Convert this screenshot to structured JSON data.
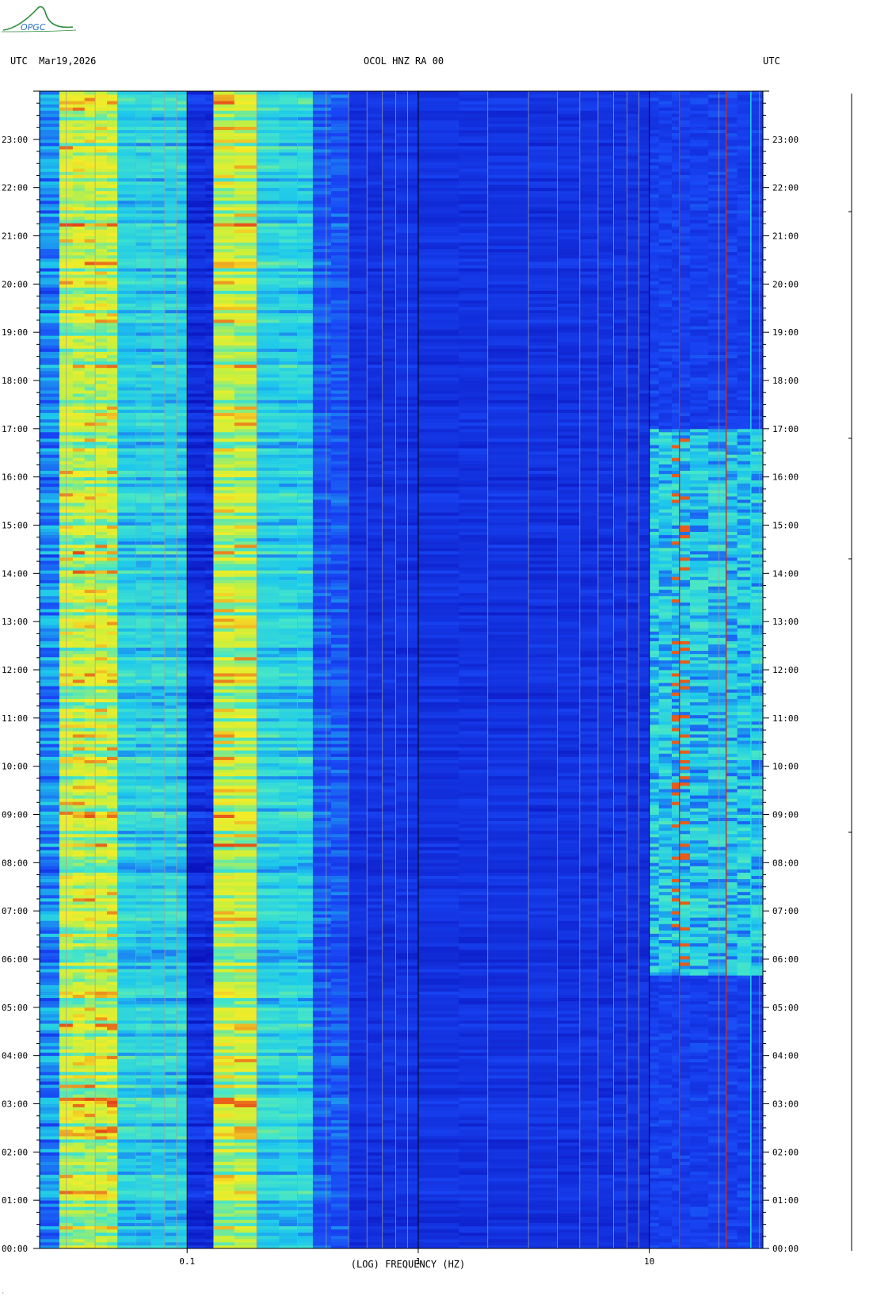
{
  "header": {
    "left": "UTC  Mar19,2026",
    "center": "OCOL HNZ RA 00",
    "right": "UTC"
  },
  "logo": {
    "text": "OPGC",
    "color": "#2a8c3a"
  },
  "colors": {
    "low": "#0a2be6",
    "mid": "#1fe0e0",
    "high": "#f2f226",
    "peak": "#e0201a",
    "freq_line_gray": "#a0a0a0",
    "freq_line_decade": "#000000",
    "freq_line_red": "#c8301a"
  },
  "chart_data": {
    "type": "heatmap",
    "title": "OCOL HNZ RA 00",
    "xlabel": "(LOG) FREQUENCY (HZ)",
    "ylabel": "UTC",
    "x_scale": "log",
    "xlim_hz": [
      0.023,
      31
    ],
    "x_ticks": [
      {
        "value": 0.1,
        "label": "0.1"
      },
      {
        "value": 1,
        "label": "1"
      },
      {
        "value": 10,
        "label": "10"
      }
    ],
    "time_range": [
      "00:00",
      "24:00"
    ],
    "y_ticks": [
      "00:00",
      "01:00",
      "02:00",
      "03:00",
      "04:00",
      "05:00",
      "06:00",
      "07:00",
      "08:00",
      "09:00",
      "10:00",
      "11:00",
      "12:00",
      "13:00",
      "14:00",
      "15:00",
      "16:00",
      "17:00",
      "18:00",
      "19:00",
      "20:00",
      "21:00",
      "22:00",
      "23:00"
    ],
    "spectral_bands": [
      {
        "from_hz": 0.028,
        "to_hz": 0.05,
        "level": "high"
      },
      {
        "from_hz": 0.05,
        "to_hz": 0.1,
        "level": "mid"
      },
      {
        "from_hz": 0.13,
        "to_hz": 0.2,
        "level": "high"
      },
      {
        "from_hz": 0.2,
        "to_hz": 0.35,
        "level": "mid"
      },
      {
        "from_hz": 0.35,
        "to_hz": 10,
        "level": "low"
      },
      {
        "from_hz": 10,
        "to_hz": 31,
        "level": "mid"
      }
    ],
    "persistent_lines_hz": [
      13.5,
      21.5,
      27.5
    ],
    "active_period_utc": [
      "05:40",
      "17:00"
    ]
  },
  "footer": {
    "note": "·"
  }
}
